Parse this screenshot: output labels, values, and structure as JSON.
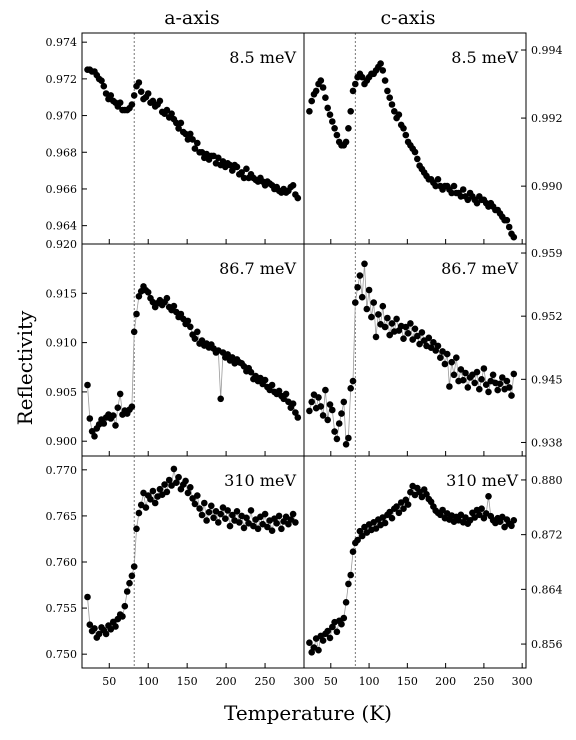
{
  "figure": {
    "column_titles": [
      "a-axis",
      "c-axis"
    ],
    "xlabel": "Temperature (K)",
    "ylabel": "Reflectivity",
    "transition_temperature": 82
  },
  "chart_data": [
    {
      "id": "a-8.5",
      "type": "scatter",
      "col": 0,
      "row": 0,
      "label": "8.5 meV",
      "xlim": [
        15,
        300
      ],
      "ylim": [
        0.963,
        0.9745
      ],
      "yticks": [
        0.964,
        0.966,
        0.968,
        0.97,
        0.972,
        0.974
      ],
      "ytick_labels": [
        "0.964",
        "0.966",
        "0.968",
        "0.970",
        "0.972",
        "0.974"
      ],
      "y_axis_side": "left",
      "x": [
        22,
        25,
        28,
        31,
        34,
        37,
        40,
        43,
        46,
        49,
        52,
        55,
        58,
        61,
        64,
        67,
        70,
        73,
        76,
        79,
        82,
        85,
        88,
        91,
        94,
        97,
        100,
        103,
        106,
        109,
        112,
        115,
        118,
        121,
        124,
        127,
        130,
        133,
        136,
        139,
        142,
        145,
        148,
        151,
        154,
        157,
        160,
        163,
        166,
        169,
        172,
        175,
        178,
        181,
        184,
        187,
        190,
        193,
        196,
        199,
        202,
        205,
        208,
        211,
        214,
        217,
        220,
        223,
        226,
        229,
        232,
        235,
        238,
        241,
        244,
        247,
        250,
        253,
        256,
        259,
        262,
        265,
        268,
        271,
        274,
        277,
        280,
        283,
        286,
        289,
        292
      ],
      "y": [
        0.9725,
        0.9725,
        0.9724,
        0.9724,
        0.9722,
        0.972,
        0.9719,
        0.9716,
        0.9712,
        0.9709,
        0.9711,
        0.9708,
        0.9707,
        0.9705,
        0.9707,
        0.9703,
        0.9703,
        0.9703,
        0.9704,
        0.9706,
        0.9711,
        0.9716,
        0.9718,
        0.9713,
        0.9709,
        0.971,
        0.9712,
        0.9707,
        0.9708,
        0.9705,
        0.9706,
        0.9708,
        0.9702,
        0.9701,
        0.9703,
        0.9699,
        0.9701,
        0.9698,
        0.9696,
        0.9693,
        0.9696,
        0.9691,
        0.969,
        0.9687,
        0.969,
        0.9687,
        0.9682,
        0.9685,
        0.968,
        0.968,
        0.9677,
        0.9679,
        0.9676,
        0.9678,
        0.9678,
        0.9674,
        0.9677,
        0.9673,
        0.9675,
        0.9672,
        0.9674,
        0.9673,
        0.967,
        0.9673,
        0.9672,
        0.9668,
        0.9669,
        0.9666,
        0.9671,
        0.9666,
        0.9668,
        0.9666,
        0.9665,
        0.9664,
        0.9666,
        0.9664,
        0.9662,
        0.9664,
        0.9663,
        0.9662,
        0.966,
        0.9661,
        0.9659,
        0.9658,
        0.966,
        0.9658,
        0.9659,
        0.9661,
        0.9662,
        0.9657,
        0.9655
      ],
      "connect": false
    },
    {
      "id": "c-8.5",
      "type": "scatter",
      "col": 1,
      "row": 0,
      "label": "8.5 meV",
      "xlim": [
        15,
        305
      ],
      "ylim": [
        0.9883,
        0.9945
      ],
      "yticks": [
        0.99,
        0.992,
        0.994
      ],
      "ytick_labels": [
        "0.990",
        "0.992",
        "0.994"
      ],
      "y_axis_side": "right",
      "x": [
        22,
        25,
        28,
        31,
        34,
        37,
        40,
        43,
        46,
        49,
        52,
        55,
        58,
        61,
        64,
        67,
        70,
        73,
        76,
        79,
        82,
        85,
        88,
        91,
        94,
        97,
        100,
        103,
        106,
        109,
        112,
        115,
        118,
        121,
        124,
        127,
        130,
        133,
        136,
        139,
        142,
        145,
        148,
        151,
        154,
        157,
        160,
        163,
        166,
        169,
        172,
        175,
        178,
        181,
        184,
        187,
        190,
        193,
        196,
        199,
        202,
        205,
        208,
        211,
        214,
        217,
        220,
        223,
        226,
        229,
        232,
        235,
        238,
        241,
        244,
        247,
        250,
        253,
        256,
        259,
        262,
        265,
        268,
        271,
        274,
        277,
        280,
        283,
        286,
        289
      ],
      "y": [
        0.9922,
        0.9925,
        0.9927,
        0.9928,
        0.993,
        0.9931,
        0.9929,
        0.9926,
        0.9923,
        0.9921,
        0.9919,
        0.9917,
        0.9915,
        0.9913,
        0.9912,
        0.9912,
        0.9913,
        0.9917,
        0.9922,
        0.9928,
        0.993,
        0.9932,
        0.9933,
        0.9932,
        0.993,
        0.9931,
        0.9932,
        0.9933,
        0.9933,
        0.9934,
        0.9935,
        0.9936,
        0.9934,
        0.9931,
        0.9928,
        0.9926,
        0.9924,
        0.9922,
        0.992,
        0.9921,
        0.9918,
        0.9917,
        0.9915,
        0.9913,
        0.9912,
        0.9911,
        0.991,
        0.9908,
        0.9906,
        0.9905,
        0.9904,
        0.9903,
        0.9902,
        0.9902,
        0.9901,
        0.99,
        0.9902,
        0.99,
        0.9899,
        0.99,
        0.99,
        0.9899,
        0.9898,
        0.99,
        0.9898,
        0.9898,
        0.9897,
        0.9899,
        0.9897,
        0.9896,
        0.9898,
        0.9897,
        0.9896,
        0.9895,
        0.9897,
        0.9896,
        0.9896,
        0.9895,
        0.9894,
        0.9895,
        0.9894,
        0.9893,
        0.9893,
        0.9892,
        0.9891,
        0.989,
        0.989,
        0.9888,
        0.9886,
        0.9885
      ],
      "connect": false
    },
    {
      "id": "a-86.7",
      "type": "scatter",
      "col": 0,
      "row": 1,
      "label": "86.7 meV",
      "xlim": [
        15,
        300
      ],
      "ylim": [
        0.8985,
        0.92
      ],
      "yticks": [
        0.9,
        0.905,
        0.91,
        0.915,
        0.92
      ],
      "ytick_labels": [
        "0.900",
        "0.905",
        "0.910",
        "0.915",
        "0.920"
      ],
      "y_axis_side": "left",
      "x": [
        22,
        25,
        28,
        31,
        34,
        37,
        40,
        43,
        46,
        49,
        52,
        55,
        58,
        61,
        64,
        67,
        70,
        73,
        76,
        79,
        82,
        85,
        88,
        91,
        94,
        97,
        100,
        103,
        106,
        109,
        112,
        115,
        118,
        121,
        124,
        127,
        130,
        133,
        136,
        139,
        142,
        145,
        148,
        151,
        154,
        157,
        160,
        163,
        166,
        169,
        172,
        175,
        178,
        181,
        184,
        187,
        190,
        193,
        196,
        199,
        202,
        205,
        208,
        211,
        214,
        217,
        220,
        223,
        226,
        229,
        232,
        235,
        238,
        241,
        244,
        247,
        250,
        253,
        256,
        259,
        262,
        265,
        268,
        271,
        274,
        277,
        280,
        283,
        286,
        289,
        292
      ],
      "y": [
        0.9057,
        0.9023,
        0.901,
        0.9005,
        0.9013,
        0.9017,
        0.9022,
        0.9018,
        0.9024,
        0.9027,
        0.9023,
        0.9026,
        0.9016,
        0.9034,
        0.9048,
        0.9027,
        0.9031,
        0.9028,
        0.9032,
        0.9035,
        0.9111,
        0.9129,
        0.9147,
        0.9152,
        0.9157,
        0.9153,
        0.9151,
        0.9145,
        0.9141,
        0.9136,
        0.914,
        0.9143,
        0.9138,
        0.9141,
        0.9145,
        0.9136,
        0.9133,
        0.9137,
        0.9131,
        0.9126,
        0.9129,
        0.9124,
        0.9119,
        0.9122,
        0.9116,
        0.9108,
        0.9104,
        0.9111,
        0.9099,
        0.9102,
        0.9097,
        0.9099,
        0.9095,
        0.9098,
        0.9094,
        0.909,
        0.9092,
        0.9043,
        0.909,
        0.9085,
        0.9088,
        0.9082,
        0.9085,
        0.9079,
        0.9083,
        0.908,
        0.9079,
        0.9076,
        0.9071,
        0.9074,
        0.907,
        0.9063,
        0.9066,
        0.9061,
        0.9064,
        0.9058,
        0.9062,
        0.9055,
        0.9052,
        0.9057,
        0.905,
        0.9048,
        0.9051,
        0.9046,
        0.9043,
        0.9048,
        0.904,
        0.9034,
        0.9038,
        0.9029,
        0.9024
      ],
      "connect": true
    },
    {
      "id": "c-86.7",
      "type": "scatter",
      "col": 1,
      "row": 1,
      "label": "86.7 meV",
      "xlim": [
        15,
        305
      ],
      "ylim": [
        0.9365,
        0.96
      ],
      "yticks": [
        0.938,
        0.945,
        0.952,
        0.959
      ],
      "ytick_labels": [
        "0.938",
        "0.945",
        "0.952",
        "0.959"
      ],
      "y_axis_side": "right",
      "x": [
        22,
        25,
        28,
        31,
        34,
        37,
        40,
        43,
        46,
        49,
        52,
        55,
        58,
        61,
        64,
        67,
        70,
        73,
        76,
        79,
        82,
        85,
        88,
        91,
        94,
        97,
        100,
        103,
        106,
        109,
        112,
        115,
        118,
        121,
        124,
        127,
        130,
        133,
        136,
        139,
        142,
        145,
        148,
        151,
        154,
        157,
        160,
        163,
        166,
        169,
        172,
        175,
        178,
        181,
        184,
        187,
        190,
        193,
        196,
        199,
        202,
        205,
        208,
        211,
        214,
        217,
        220,
        223,
        226,
        229,
        232,
        235,
        238,
        241,
        244,
        247,
        250,
        253,
        256,
        259,
        262,
        265,
        268,
        271,
        274,
        277,
        280,
        283,
        286,
        289
      ],
      "y": [
        0.9415,
        0.9425,
        0.9433,
        0.9418,
        0.943,
        0.942,
        0.941,
        0.9438,
        0.9405,
        0.9422,
        0.9416,
        0.9392,
        0.9384,
        0.9401,
        0.9412,
        0.9425,
        0.9378,
        0.9385,
        0.944,
        0.9448,
        0.9535,
        0.9552,
        0.9565,
        0.9541,
        0.9578,
        0.9528,
        0.9549,
        0.9519,
        0.9535,
        0.9497,
        0.9522,
        0.9511,
        0.9531,
        0.9508,
        0.9518,
        0.9499,
        0.9512,
        0.9503,
        0.9517,
        0.9504,
        0.9509,
        0.9495,
        0.9508,
        0.9501,
        0.9512,
        0.9494,
        0.9506,
        0.9498,
        0.9489,
        0.9502,
        0.9493,
        0.9487,
        0.9496,
        0.9485,
        0.9491,
        0.9482,
        0.9487,
        0.9474,
        0.9481,
        0.9467,
        0.9478,
        0.9442,
        0.9469,
        0.9455,
        0.9474,
        0.9448,
        0.9461,
        0.9449,
        0.9457,
        0.9441,
        0.9452,
        0.9455,
        0.9446,
        0.9458,
        0.9439,
        0.945,
        0.9462,
        0.9444,
        0.9436,
        0.9448,
        0.9455,
        0.9446,
        0.9438,
        0.9445,
        0.9452,
        0.9439,
        0.9448,
        0.9441,
        0.9432,
        0.9456
      ],
      "connect": true
    },
    {
      "id": "a-310",
      "type": "scatter",
      "col": 0,
      "row": 2,
      "label": "310 meV",
      "xlim": [
        15,
        300
      ],
      "ylim": [
        0.7485,
        0.7715
      ],
      "yticks": [
        0.75,
        0.755,
        0.76,
        0.765,
        0.77
      ],
      "ytick_labels": [
        "0.750",
        "0.755",
        "0.760",
        "0.765",
        "0.770"
      ],
      "y_axis_side": "left",
      "x": [
        22,
        25,
        28,
        31,
        34,
        37,
        40,
        43,
        46,
        49,
        52,
        55,
        58,
        61,
        64,
        67,
        70,
        73,
        76,
        79,
        82,
        85,
        88,
        91,
        94,
        97,
        100,
        103,
        106,
        109,
        112,
        115,
        118,
        121,
        124,
        127,
        130,
        133,
        136,
        139,
        142,
        145,
        148,
        151,
        154,
        157,
        160,
        163,
        166,
        169,
        172,
        175,
        178,
        181,
        184,
        187,
        190,
        193,
        196,
        199,
        202,
        205,
        208,
        211,
        214,
        217,
        220,
        223,
        226,
        229,
        232,
        235,
        238,
        241,
        244,
        247,
        250,
        253,
        256,
        259,
        262,
        265,
        268,
        271,
        274,
        277,
        280,
        283,
        286,
        289
      ],
      "y": [
        0.7562,
        0.7532,
        0.7525,
        0.7528,
        0.7518,
        0.7522,
        0.7529,
        0.7526,
        0.7522,
        0.7531,
        0.7527,
        0.7535,
        0.753,
        0.7538,
        0.7543,
        0.7541,
        0.7552,
        0.7568,
        0.7577,
        0.7585,
        0.7595,
        0.7636,
        0.7653,
        0.7662,
        0.7675,
        0.7659,
        0.7672,
        0.7668,
        0.7677,
        0.7664,
        0.7671,
        0.7679,
        0.7673,
        0.7684,
        0.7676,
        0.7689,
        0.7683,
        0.7701,
        0.7686,
        0.7692,
        0.7679,
        0.7684,
        0.7688,
        0.7675,
        0.7681,
        0.7669,
        0.7663,
        0.7672,
        0.7658,
        0.7651,
        0.7664,
        0.7645,
        0.7654,
        0.7661,
        0.7648,
        0.7655,
        0.7643,
        0.7652,
        0.7659,
        0.7647,
        0.7656,
        0.7639,
        0.7651,
        0.7645,
        0.7655,
        0.7643,
        0.765,
        0.7637,
        0.7648,
        0.7642,
        0.7656,
        0.7639,
        0.7646,
        0.7636,
        0.7649,
        0.7641,
        0.7652,
        0.7638,
        0.7645,
        0.7634,
        0.7647,
        0.7642,
        0.765,
        0.7636,
        0.7644,
        0.7649,
        0.7641,
        0.7646,
        0.7652,
        0.7643
      ],
      "connect": true
    },
    {
      "id": "c-310",
      "type": "scatter",
      "col": 1,
      "row": 2,
      "label": "310 meV",
      "xlim": [
        15,
        305
      ],
      "ylim": [
        0.8525,
        0.8835
      ],
      "yticks": [
        0.856,
        0.864,
        0.872,
        0.88
      ],
      "ytick_labels": [
        "0.856",
        "0.864",
        "0.872",
        "0.880"
      ],
      "y_axis_side": "right",
      "x": [
        22,
        25,
        28,
        31,
        34,
        37,
        40,
        43,
        46,
        49,
        52,
        55,
        58,
        61,
        64,
        67,
        70,
        73,
        76,
        79,
        82,
        85,
        88,
        91,
        94,
        97,
        100,
        103,
        106,
        109,
        112,
        115,
        118,
        121,
        124,
        127,
        130,
        133,
        136,
        139,
        142,
        145,
        148,
        151,
        154,
        157,
        160,
        163,
        166,
        169,
        172,
        175,
        178,
        181,
        184,
        187,
        190,
        193,
        196,
        199,
        202,
        205,
        208,
        211,
        214,
        217,
        220,
        223,
        226,
        229,
        232,
        235,
        238,
        241,
        244,
        247,
        250,
        253,
        256,
        259,
        262,
        265,
        268,
        271,
        274,
        277,
        280,
        283,
        286,
        289
      ],
      "y": [
        0.8562,
        0.8548,
        0.8555,
        0.8568,
        0.8551,
        0.8572,
        0.8565,
        0.8575,
        0.8579,
        0.8569,
        0.8585,
        0.8592,
        0.8578,
        0.8594,
        0.8589,
        0.8598,
        0.8621,
        0.8648,
        0.8661,
        0.8695,
        0.8708,
        0.8712,
        0.8725,
        0.8718,
        0.8731,
        0.8723,
        0.8735,
        0.8727,
        0.8738,
        0.8729,
        0.8742,
        0.8734,
        0.8745,
        0.8737,
        0.8749,
        0.8753,
        0.8744,
        0.8758,
        0.8761,
        0.8752,
        0.8767,
        0.8758,
        0.8771,
        0.8764,
        0.8782,
        0.8791,
        0.8778,
        0.8788,
        0.8782,
        0.8775,
        0.8786,
        0.8779,
        0.8772,
        0.8768,
        0.8761,
        0.8755,
        0.8752,
        0.8749,
        0.8756,
        0.8744,
        0.8751,
        0.8742,
        0.8748,
        0.8739,
        0.8746,
        0.8741,
        0.8749,
        0.8738,
        0.8745,
        0.8736,
        0.8741,
        0.8752,
        0.8745,
        0.8756,
        0.8749,
        0.8758,
        0.8744,
        0.8751,
        0.8776,
        0.8747,
        0.8741,
        0.8737,
        0.8744,
        0.8739,
        0.8746,
        0.8731,
        0.8742,
        0.8736,
        0.8733,
        0.8741
      ],
      "connect": true
    }
  ],
  "x_axis": {
    "ticks": [
      50,
      100,
      150,
      200,
      250,
      300
    ],
    "tick_labels": [
      "50",
      "100",
      "150",
      "200",
      "250",
      "300"
    ]
  },
  "colors": {
    "marker": "#000000",
    "connector": "#9a9a9a",
    "dashed_line": "#555555",
    "frame": "#000000"
  }
}
